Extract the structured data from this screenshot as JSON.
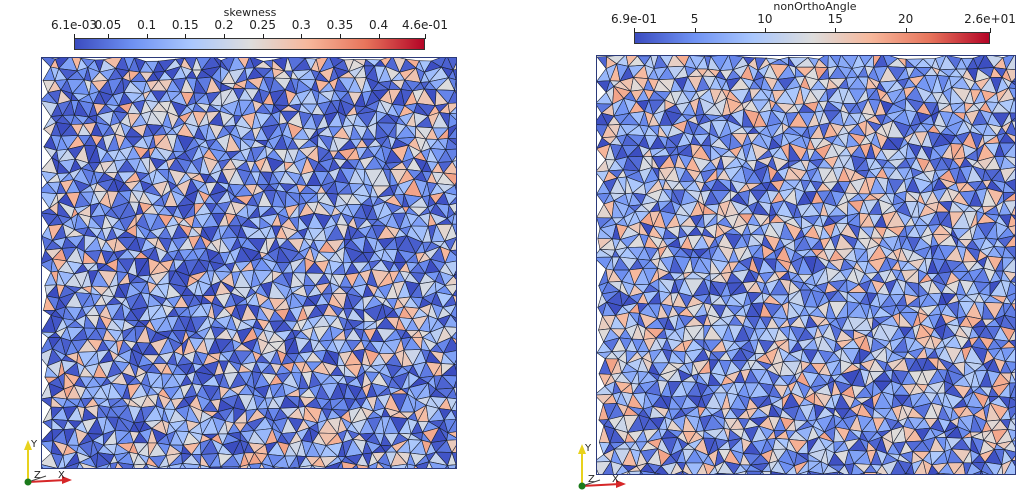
{
  "left_view": {
    "array_name": "skewness",
    "colormap": [
      "#3b4cc0",
      "#6f92f3",
      "#aac7fd",
      "#dddddd",
      "#f7b89c",
      "#e7745b",
      "#b40426"
    ],
    "tick_labels": [
      "6.1e-03",
      "0.05",
      "0.1",
      "0.15",
      "0.2",
      "0.25",
      "0.3",
      "0.35",
      "0.4",
      "4.6e-01"
    ],
    "tick_values": [
      0.0061,
      0.05,
      0.1,
      0.15,
      0.2,
      0.25,
      0.3,
      0.35,
      0.4,
      0.46
    ],
    "range": [
      0.0061,
      0.46
    ]
  },
  "right_view": {
    "array_name": "nonOrthoAngle",
    "colormap": [
      "#3b4cc0",
      "#6f92f3",
      "#aac7fd",
      "#dddddd",
      "#f7b89c",
      "#e7745b",
      "#b40426"
    ],
    "tick_labels": [
      "6.9e-01",
      "5",
      "10",
      "15",
      "20",
      "2.6e+01"
    ],
    "tick_values": [
      0.69,
      5,
      10,
      15,
      20,
      26
    ],
    "range": [
      0.69,
      26
    ]
  },
  "axes_triad": {
    "x_label": "X",
    "y_label": "Y",
    "z_label": "Z",
    "x_color": "#d62728",
    "y_color": "#e8d21d",
    "z_color": "#1a7a1a"
  },
  "mesh_style": {
    "edge_color": "#1b2233"
  }
}
